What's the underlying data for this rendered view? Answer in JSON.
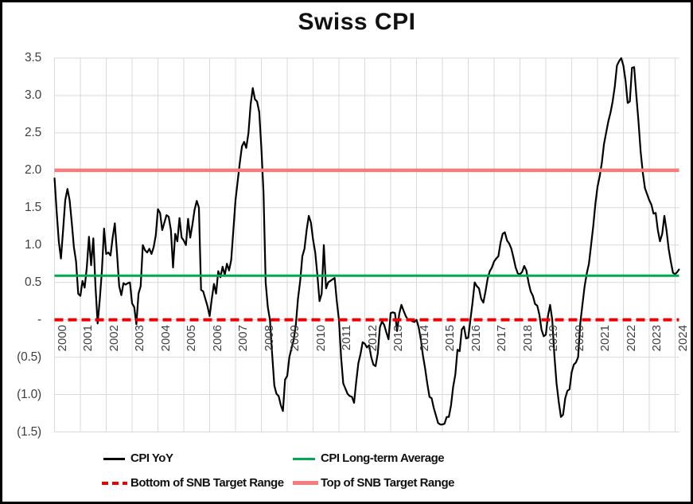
{
  "chart_data": {
    "type": "line",
    "title": "Swiss CPI",
    "ylim": [
      -1.5,
      3.5
    ],
    "y_tick_step": 0.5,
    "y_tick_labels": [
      "3.5",
      "3.0",
      "2.5",
      "2.0",
      "1.5",
      "1.0",
      "0.5",
      "-",
      "(0.5)",
      "(1.0)",
      "(1.5)"
    ],
    "x_tick_labels": [
      "2000",
      "2001",
      "2002",
      "2003",
      "2004",
      "2005",
      "2006",
      "2007",
      "2008",
      "2009",
      "2010",
      "2011",
      "2012",
      "2013",
      "2014",
      "2015",
      "2016",
      "2017",
      "2018",
      "2019",
      "2020",
      "2021",
      "2022",
      "2023",
      "2024"
    ],
    "x_frequency": "monthly",
    "grid": true,
    "legend_position": "bottom",
    "series": [
      {
        "name": "CPI YoY",
        "type": "line",
        "style": "solid",
        "color": "#000000",
        "monthly_values": [
          1.9,
          1.45,
          1.05,
          0.82,
          1.2,
          1.6,
          1.75,
          1.6,
          1.3,
          0.97,
          0.78,
          0.35,
          0.32,
          0.52,
          0.43,
          0.7,
          1.11,
          0.73,
          1.09,
          0.45,
          -0.05,
          0.27,
          0.66,
          1.22,
          0.88,
          0.9,
          0.86,
          1.1,
          1.29,
          0.9,
          0.45,
          0.33,
          0.49,
          0.47,
          0.49,
          0.5,
          0.22,
          0.17,
          -0.06,
          0.35,
          0.45,
          1.0,
          0.93,
          0.9,
          0.95,
          0.88,
          0.97,
          1.13,
          1.48,
          1.43,
          1.2,
          1.3,
          1.4,
          1.38,
          1.2,
          0.7,
          1.15,
          1.05,
          1.36,
          1.1,
          1.06,
          1.0,
          1.35,
          1.1,
          1.27,
          1.47,
          1.59,
          1.5,
          0.4,
          0.38,
          0.28,
          0.18,
          0.05,
          0.28,
          0.48,
          0.35,
          0.65,
          0.57,
          0.71,
          0.6,
          0.75,
          0.66,
          0.8,
          1.2,
          1.6,
          1.85,
          2.1,
          2.32,
          2.38,
          2.3,
          2.5,
          2.88,
          3.1,
          2.95,
          2.92,
          2.78,
          2.3,
          1.7,
          0.5,
          0.17,
          0.0,
          -0.45,
          -0.88,
          -0.99,
          -1.02,
          -1.14,
          -1.22,
          -0.8,
          -0.75,
          -0.5,
          -0.38,
          -0.27,
          -0.07,
          0.28,
          0.52,
          0.85,
          0.95,
          1.2,
          1.39,
          1.3,
          1.07,
          0.9,
          0.6,
          0.25,
          0.35,
          1.0,
          0.42,
          0.5,
          0.52,
          0.54,
          0.56,
          0.25,
          0.0,
          -0.5,
          -0.85,
          -0.92,
          -0.99,
          -1.02,
          -1.03,
          -1.11,
          -0.83,
          -0.58,
          -0.46,
          -0.3,
          -0.32,
          -0.37,
          -0.34,
          -0.5,
          -0.6,
          -0.62,
          -0.45,
          -0.1,
          -0.02,
          -0.07,
          -0.17,
          -0.26,
          0.09,
          0.1,
          0.09,
          -0.15,
          0.08,
          0.2,
          0.12,
          0.05,
          0.0,
          0.01,
          -0.02,
          -0.03,
          0.0,
          -0.1,
          -0.26,
          -0.48,
          -0.65,
          -0.85,
          -1.03,
          -1.05,
          -1.18,
          -1.28,
          -1.38,
          -1.4,
          -1.4,
          -1.39,
          -1.3,
          -1.3,
          -1.15,
          -0.9,
          -0.73,
          -0.4,
          -0.42,
          -0.13,
          -0.09,
          -0.25,
          -0.24,
          0.0,
          0.23,
          0.5,
          0.45,
          0.42,
          0.28,
          0.23,
          0.38,
          0.55,
          0.65,
          0.7,
          0.78,
          0.82,
          0.85,
          1.03,
          1.15,
          1.17,
          1.06,
          1.02,
          0.95,
          0.83,
          0.7,
          0.62,
          0.61,
          0.64,
          0.72,
          0.66,
          0.5,
          0.38,
          0.32,
          0.21,
          0.19,
          0.07,
          -0.13,
          -0.22,
          -0.2,
          0.05,
          0.2,
          0.0,
          -0.48,
          -0.85,
          -1.1,
          -1.3,
          -1.27,
          -1.05,
          -0.95,
          -0.93,
          -0.7,
          -0.6,
          -0.57,
          -0.5,
          -0.05,
          0.2,
          0.45,
          0.62,
          0.75,
          1.0,
          1.25,
          1.55,
          1.78,
          1.92,
          2.1,
          2.35,
          2.5,
          2.65,
          2.77,
          2.92,
          3.12,
          3.4,
          3.46,
          3.5,
          3.4,
          3.2,
          2.9,
          2.92,
          3.37,
          3.38,
          3.0,
          2.65,
          2.25,
          1.97,
          1.76,
          1.68,
          1.6,
          1.54,
          1.42,
          1.43,
          1.2,
          1.05,
          1.15,
          1.39,
          1.2,
          0.95,
          0.78,
          0.63,
          0.61,
          0.64,
          0.68
        ]
      },
      {
        "name": "CPI Long-term Average",
        "type": "hline",
        "style": "solid",
        "color": "#00a94f",
        "value": 0.59
      },
      {
        "name": "Bottom of SNB Target Range",
        "type": "hline",
        "style": "dashed",
        "color": "#ee0000",
        "value": 0
      },
      {
        "name": "Top of SNB Target Range",
        "type": "hline",
        "style": "solid",
        "color": "#f47c7c",
        "value": 2
      }
    ],
    "colors": {
      "cpi_line": "#000000",
      "long_term_average": "#00a94f",
      "bottom_target": "#ee0000",
      "top_target": "#f47c7c",
      "gridline": "#d9d9d9"
    }
  }
}
